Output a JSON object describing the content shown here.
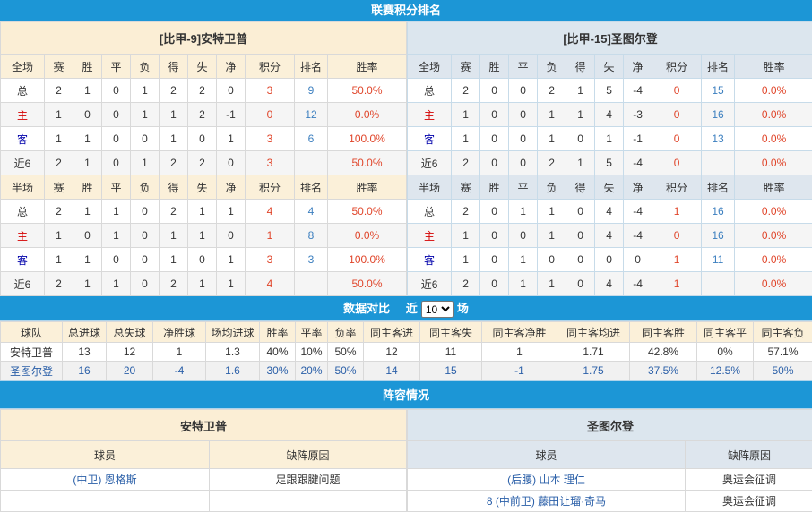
{
  "standings": {
    "title": "联赛积分排名",
    "columns": [
      "赛",
      "胜",
      "平",
      "负",
      "得",
      "失",
      "净",
      "积分",
      "排名",
      "胜率"
    ],
    "full_label": "全场",
    "half_label": "半场",
    "teams": [
      {
        "name": "[比甲-9]安特卫普",
        "full": [
          [
            "总",
            "2",
            "1",
            "0",
            "1",
            "2",
            "2",
            "0",
            "3",
            "9",
            "50.0%"
          ],
          [
            "主",
            "1",
            "0",
            "0",
            "1",
            "1",
            "2",
            "-1",
            "0",
            "12",
            "0.0%"
          ],
          [
            "客",
            "1",
            "1",
            "0",
            "0",
            "1",
            "0",
            "1",
            "3",
            "6",
            "100.0%"
          ],
          [
            "近6",
            "2",
            "1",
            "0",
            "1",
            "2",
            "2",
            "0",
            "3",
            "",
            "50.0%"
          ]
        ],
        "half": [
          [
            "总",
            "2",
            "1",
            "1",
            "0",
            "2",
            "1",
            "1",
            "4",
            "4",
            "50.0%"
          ],
          [
            "主",
            "1",
            "0",
            "1",
            "0",
            "1",
            "1",
            "0",
            "1",
            "8",
            "0.0%"
          ],
          [
            "客",
            "1",
            "1",
            "0",
            "0",
            "1",
            "0",
            "1",
            "3",
            "3",
            "100.0%"
          ],
          [
            "近6",
            "2",
            "1",
            "1",
            "0",
            "2",
            "1",
            "1",
            "4",
            "",
            "50.0%"
          ]
        ]
      },
      {
        "name": "[比甲-15]圣图尔登",
        "full": [
          [
            "总",
            "2",
            "0",
            "0",
            "2",
            "1",
            "5",
            "-4",
            "0",
            "15",
            "0.0%"
          ],
          [
            "主",
            "1",
            "0",
            "0",
            "1",
            "1",
            "4",
            "-3",
            "0",
            "16",
            "0.0%"
          ],
          [
            "客",
            "1",
            "0",
            "0",
            "1",
            "0",
            "1",
            "-1",
            "0",
            "13",
            "0.0%"
          ],
          [
            "近6",
            "2",
            "0",
            "0",
            "2",
            "1",
            "5",
            "-4",
            "0",
            "",
            "0.0%"
          ]
        ],
        "half": [
          [
            "总",
            "2",
            "0",
            "1",
            "1",
            "0",
            "4",
            "-4",
            "1",
            "16",
            "0.0%"
          ],
          [
            "主",
            "1",
            "0",
            "0",
            "1",
            "0",
            "4",
            "-4",
            "0",
            "16",
            "0.0%"
          ],
          [
            "客",
            "1",
            "0",
            "1",
            "0",
            "0",
            "0",
            "0",
            "1",
            "11",
            "0.0%"
          ],
          [
            "近6",
            "2",
            "0",
            "1",
            "1",
            "0",
            "4",
            "-4",
            "1",
            "",
            "0.0%"
          ]
        ]
      }
    ]
  },
  "compare": {
    "title": "数据对比",
    "prefix": "近",
    "suffix": "场",
    "selected": "10",
    "columns": [
      "球队",
      "总进球",
      "总失球",
      "净胜球",
      "场均进球",
      "胜率",
      "平率",
      "负率",
      "同主客进",
      "同主客失",
      "同主客净胜",
      "同主客均进",
      "同主客胜",
      "同主客平",
      "同主客负"
    ],
    "rows": [
      [
        "安特卫普",
        "13",
        "12",
        "1",
        "1.3",
        "40%",
        "10%",
        "50%",
        "12",
        "11",
        "1",
        "1.71",
        "42.8%",
        "0%",
        "57.1%"
      ],
      [
        "圣图尔登",
        "16",
        "20",
        "-4",
        "1.6",
        "30%",
        "20%",
        "50%",
        "14",
        "15",
        "-1",
        "1.75",
        "37.5%",
        "12.5%",
        "50%"
      ]
    ]
  },
  "lineup": {
    "title": "阵容情况",
    "teams": [
      {
        "name": "安特卫普",
        "player_label": "球员",
        "reason_label": "缺阵原因",
        "rows": [
          [
            "(中卫) 恩格斯",
            "足跟跟腱问题"
          ],
          [
            "",
            ""
          ]
        ]
      },
      {
        "name": "圣图尔登",
        "player_label": "球员",
        "reason_label": "缺阵原因",
        "rows": [
          [
            "(后腰) 山本 理仁",
            "奥运会征调"
          ],
          [
            "8 (中前卫) 藤田让瑠·奇马",
            "奥运会征调"
          ]
        ]
      }
    ]
  },
  "colors": {
    "header": "#1c96d6",
    "home": "#d40000",
    "away": "#0000aa",
    "points": "#e0452a",
    "rank": "#3c7fbf"
  }
}
